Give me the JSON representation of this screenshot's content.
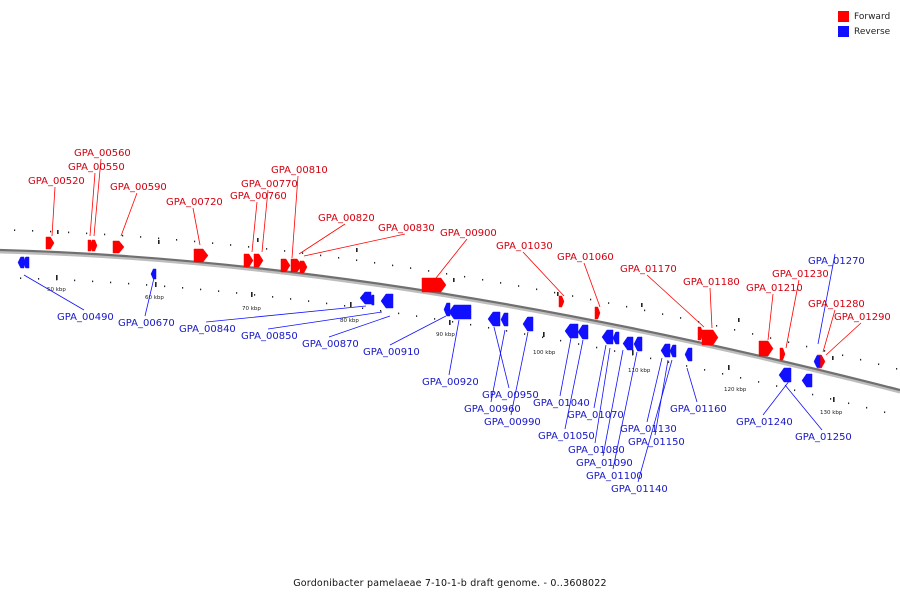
{
  "legend": {
    "forward_label": "Forward",
    "reverse_label": "Reverse",
    "forward_color": "#ff0000",
    "reverse_color": "#1010ff"
  },
  "caption": "Gordonibacter pamelaeae 7-10-1-b draft genome. - 0..3608022",
  "kbp_labels": [
    "50 kbp",
    "60 kbp",
    "70 kbp",
    "80 kbp",
    "90 kbp",
    "100 kbp",
    "110 kbp",
    "120 kbp",
    "130 kbp"
  ],
  "forward_genes": [
    "GPA_00520",
    "GPA_00560",
    "GPA_00550",
    "GPA_00590",
    "GPA_00720",
    "GPA_00770",
    "GPA_00760",
    "GPA_00810",
    "GPA_00820",
    "GPA_00830",
    "GPA_00900",
    "GPA_01030",
    "GPA_01060",
    "GPA_01170",
    "GPA_01180",
    "GPA_01210",
    "GPA_01230",
    "GPA_01280",
    "GPA_01290"
  ],
  "reverse_genes": [
    "GPA_00490",
    "GPA_00670",
    "GPA_00840",
    "GPA_00850",
    "GPA_00870",
    "GPA_00910",
    "GPA_00920",
    "GPA_00950",
    "GPA_00960",
    "GPA_00990",
    "GPA_01040",
    "GPA_01050",
    "GPA_01070",
    "GPA_01080",
    "GPA_01090",
    "GPA_01100",
    "GPA_01130",
    "GPA_01140",
    "GPA_01150",
    "GPA_01160",
    "GPA_01240",
    "GPA_01250",
    "GPA_01270"
  ]
}
